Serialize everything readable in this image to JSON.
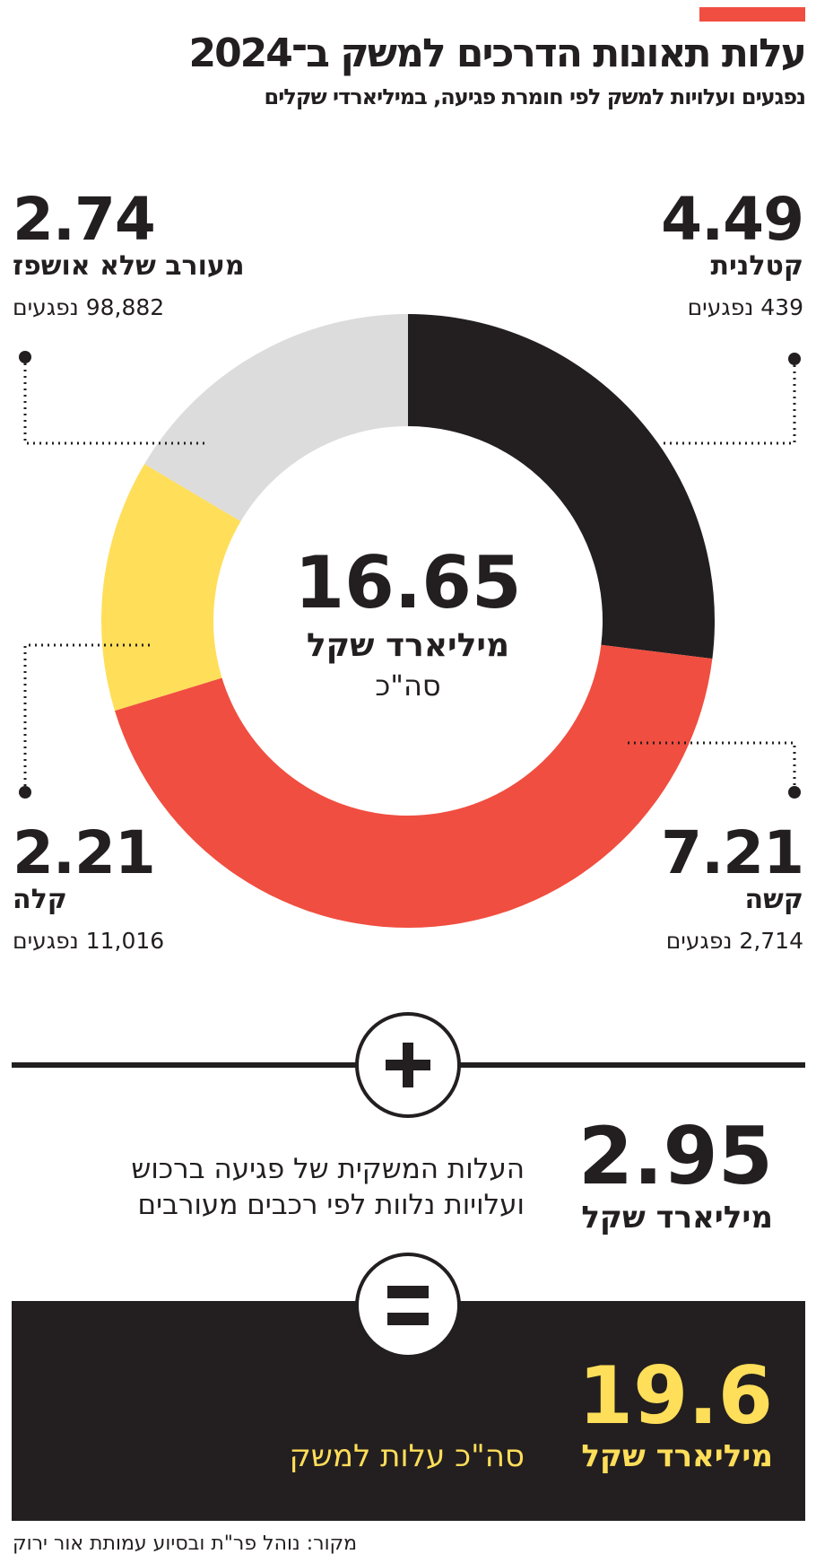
{
  "title": "עלות תאונות הדרכים למשק ב־2024",
  "subtitle": "נפגעים ועלויות למשק לפי חומרת פגיעה, במיליארדי שקלים",
  "colors": {
    "accent": "#f04e40",
    "black": "#231f20",
    "red": "#f04e40",
    "yellow": "#ffde59",
    "gray": "#dcdcdc"
  },
  "chart_data": {
    "type": "pie",
    "donut": true,
    "order": "clockwise-from-top",
    "slices": [
      {
        "label": "קטלנית",
        "value": 4.49,
        "value_text": "4.49",
        "count_text": "439 נפגעים",
        "color": "#231f20"
      },
      {
        "label": "קשה",
        "value": 7.21,
        "value_text": "7.21",
        "count_text": "2,714 נפגעים",
        "color": "#f04e40"
      },
      {
        "label": "קלה",
        "value": 2.21,
        "value_text": "2.21",
        "count_text": "11,016 נפגעים",
        "color": "#ffde59"
      },
      {
        "label": "מעורב שלא אושפז",
        "value": 2.74,
        "value_text": "2.74",
        "count_text": "98,882 נפגעים",
        "color": "#dcdcdc"
      }
    ],
    "center": {
      "value": "16.65",
      "unit": "מיליארד שקל",
      "label": "סה\"כ"
    }
  },
  "extra": {
    "operator_icon": "plus-icon",
    "value": "2.95",
    "unit": "מיליארד שקל",
    "desc_line1": "העלות המשקית של פגיעה ברכוש",
    "desc_line2": "ועלויות נלוות לפי רכבים מעורבים"
  },
  "total": {
    "operator_icon": "equals-icon",
    "value": "19.6",
    "unit": "מיליארד שקל",
    "desc": "סה\"כ עלות למשק"
  },
  "source": "מקור: נוהל פר\"ת ובסיוע עמותת אור ירוק"
}
